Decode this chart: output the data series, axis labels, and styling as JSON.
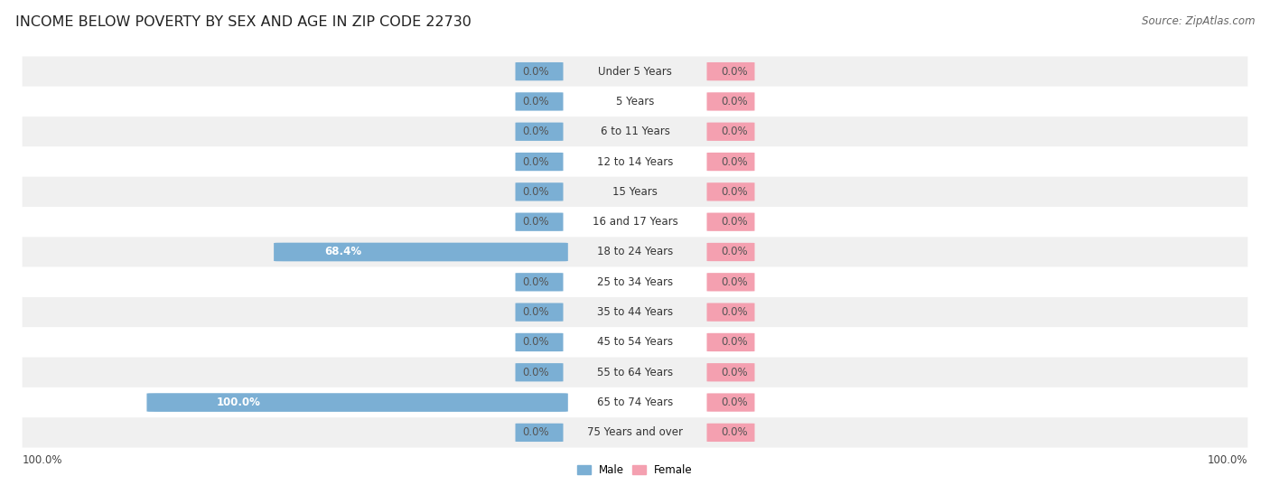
{
  "title": "INCOME BELOW POVERTY BY SEX AND AGE IN ZIP CODE 22730",
  "source": "Source: ZipAtlas.com",
  "categories": [
    "Under 5 Years",
    "5 Years",
    "6 to 11 Years",
    "12 to 14 Years",
    "15 Years",
    "16 and 17 Years",
    "18 to 24 Years",
    "25 to 34 Years",
    "35 to 44 Years",
    "45 to 54 Years",
    "55 to 64 Years",
    "65 to 74 Years",
    "75 Years and over"
  ],
  "male_values": [
    0.0,
    0.0,
    0.0,
    0.0,
    0.0,
    0.0,
    68.4,
    0.0,
    0.0,
    0.0,
    0.0,
    100.0,
    0.0
  ],
  "female_values": [
    0.0,
    0.0,
    0.0,
    0.0,
    0.0,
    0.0,
    0.0,
    0.0,
    0.0,
    0.0,
    0.0,
    0.0,
    0.0
  ],
  "male_color": "#7bafd4",
  "female_color": "#f4a0b0",
  "male_label": "Male",
  "female_label": "Female",
  "max_value": 100.0,
  "background_color": "#ffffff",
  "title_fontsize": 11.5,
  "label_fontsize": 8.5,
  "value_fontsize": 8.5,
  "source_fontsize": 8.5,
  "bar_height": 0.6
}
